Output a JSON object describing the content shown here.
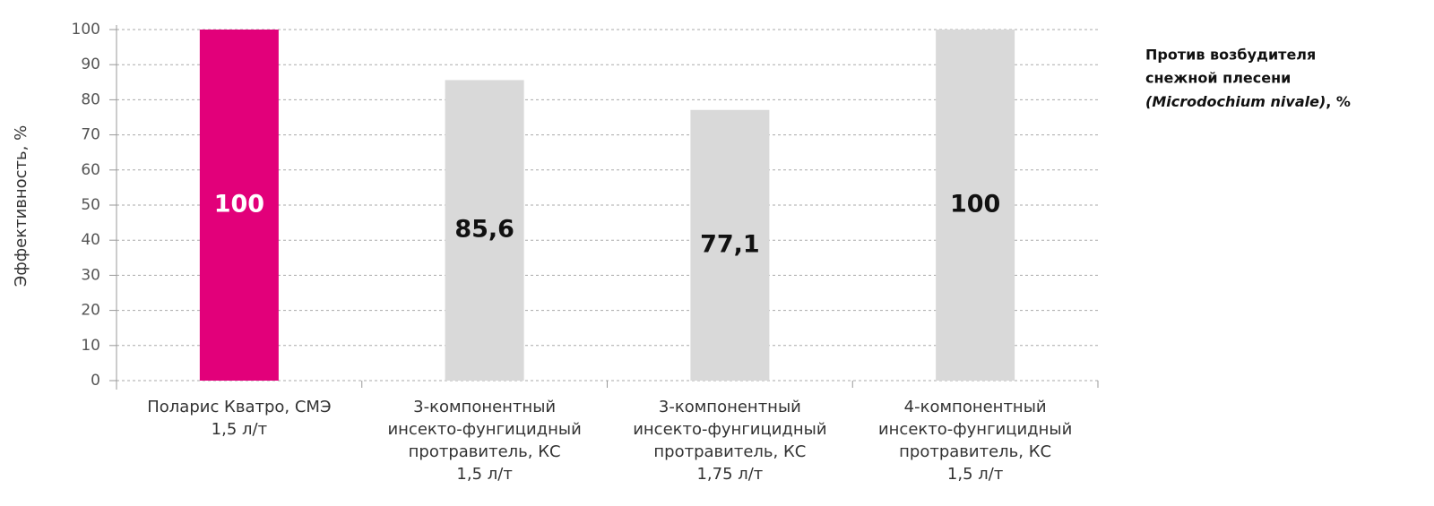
{
  "chart_data": {
    "type": "bar",
    "y_label": "Эффективность, %",
    "annotation": [
      "Против возбудителя",
      "снежной плесени"
    ],
    "annotation_italic": "(Microdochium nivale)",
    "annotation_tail": ", %",
    "categories": [
      [
        "Поларис Кватро, СМЭ",
        "1,5 л/т"
      ],
      [
        "3-компонентный",
        "инсекто-фунгицидный",
        "протравитель, КС",
        "1,5 л/т"
      ],
      [
        "3-компонентный",
        "инсекто-фунгицидный",
        "протравитель, КС",
        "1,75 л/т"
      ],
      [
        "4-компонентный",
        "инсекто-фунгицидный",
        "протравитель, КС",
        "1,5 л/т"
      ]
    ],
    "values": [
      100,
      85.6,
      77.1,
      100
    ],
    "value_labels": [
      "100",
      "85,6",
      "77,1",
      "100"
    ],
    "colors": [
      "#e2007a",
      "#d9d9d9",
      "#d9d9d9",
      "#d9d9d9"
    ],
    "value_label_colors": [
      "#ffffff",
      "#111111",
      "#111111",
      "#111111"
    ],
    "ylim": [
      0,
      100
    ],
    "yticks": [
      0,
      10,
      20,
      30,
      40,
      50,
      60,
      70,
      80,
      90,
      100
    ],
    "grid": true
  }
}
